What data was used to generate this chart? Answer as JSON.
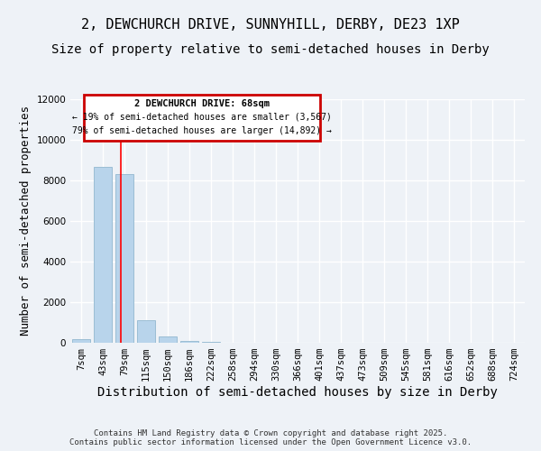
{
  "title_line1": "2, DEWCHURCH DRIVE, SUNNYHILL, DERBY, DE23 1XP",
  "title_line2": "Size of property relative to semi-detached houses in Derby",
  "xlabel": "Distribution of semi-detached houses by size in Derby",
  "ylabel": "Number of semi-detached properties",
  "categories": [
    "7sqm",
    "43sqm",
    "79sqm",
    "115sqm",
    "150sqm",
    "186sqm",
    "222sqm",
    "258sqm",
    "294sqm",
    "330sqm",
    "366sqm",
    "401sqm",
    "437sqm",
    "473sqm",
    "509sqm",
    "545sqm",
    "581sqm",
    "616sqm",
    "652sqm",
    "688sqm",
    "724sqm"
  ],
  "values": [
    200,
    8650,
    8300,
    1100,
    320,
    100,
    50,
    0,
    0,
    0,
    0,
    0,
    0,
    0,
    0,
    0,
    0,
    0,
    0,
    0,
    0
  ],
  "bar_color": "#b8d4eb",
  "bar_edge_color": "#9bbdd4",
  "property_line_x": 1.85,
  "ylim": [
    0,
    12000
  ],
  "yticks": [
    0,
    2000,
    4000,
    6000,
    8000,
    10000,
    12000
  ],
  "background_color": "#eef2f7",
  "grid_color": "#ffffff",
  "annotation_title": "2 DEWCHURCH DRIVE: 68sqm",
  "annotation_line1": "← 19% of semi-detached houses are smaller (3,567)",
  "annotation_line2": "79% of semi-detached houses are larger (14,892) →",
  "annotation_box_color": "#ffffff",
  "annotation_box_edge": "#cc0000",
  "copyright_text": "Contains HM Land Registry data © Crown copyright and database right 2025.\nContains public sector information licensed under the Open Government Licence v3.0.",
  "title_fontsize": 11,
  "subtitle_fontsize": 10,
  "axis_label_fontsize": 9,
  "tick_fontsize": 7.5
}
